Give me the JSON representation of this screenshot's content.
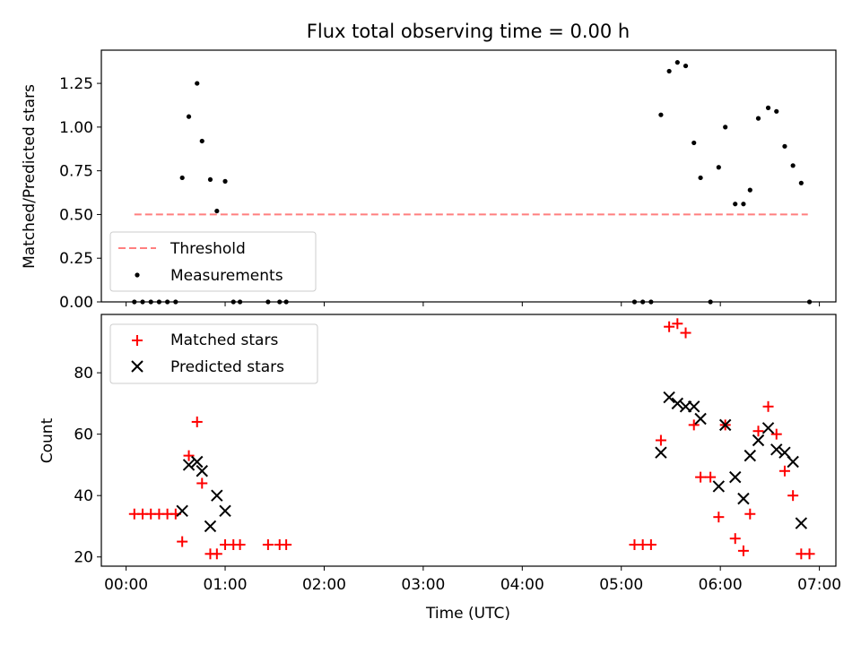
{
  "chart_data": [
    {
      "type": "scatter",
      "title": "Flux total observing time = 0.00 h",
      "xlabel": "",
      "ylabel": "Matched/Predicted stars",
      "xlim": [
        "23:45",
        "07:10"
      ],
      "ylim": [
        0,
        1.44
      ],
      "yticks": [
        "0.00",
        "0.25",
        "0.50",
        "0.75",
        "1.00",
        "1.25"
      ],
      "grid": false,
      "legend_position": "lower-left",
      "threshold": {
        "name": "Threshold",
        "color": "#ff7f7f",
        "style": "dashed",
        "y": 0.5,
        "x_start": "00:05",
        "x_end": "06:53"
      },
      "series": [
        {
          "name": "Measurements",
          "color": "#000000",
          "marker": "dot",
          "points": [
            {
              "x": "00:05",
              "y": 0.0
            },
            {
              "x": "00:10",
              "y": 0.0
            },
            {
              "x": "00:15",
              "y": 0.0
            },
            {
              "x": "00:20",
              "y": 0.0
            },
            {
              "x": "00:25",
              "y": 0.0
            },
            {
              "x": "00:30",
              "y": 0.0
            },
            {
              "x": "00:34",
              "y": 0.71
            },
            {
              "x": "00:38",
              "y": 1.06
            },
            {
              "x": "00:43",
              "y": 1.25
            },
            {
              "x": "00:46",
              "y": 0.92
            },
            {
              "x": "00:51",
              "y": 0.7
            },
            {
              "x": "00:55",
              "y": 0.52
            },
            {
              "x": "01:00",
              "y": 0.69
            },
            {
              "x": "01:05",
              "y": 0.0
            },
            {
              "x": "01:09",
              "y": 0.0
            },
            {
              "x": "01:26",
              "y": 0.0
            },
            {
              "x": "01:33",
              "y": 0.0
            },
            {
              "x": "01:37",
              "y": 0.0
            },
            {
              "x": "05:08",
              "y": 0.0
            },
            {
              "x": "05:13",
              "y": 0.0
            },
            {
              "x": "05:18",
              "y": 0.0
            },
            {
              "x": "05:24",
              "y": 1.07
            },
            {
              "x": "05:29",
              "y": 1.32
            },
            {
              "x": "05:34",
              "y": 1.37
            },
            {
              "x": "05:39",
              "y": 1.35
            },
            {
              "x": "05:44",
              "y": 0.91
            },
            {
              "x": "05:48",
              "y": 0.71
            },
            {
              "x": "05:54",
              "y": 0.0
            },
            {
              "x": "05:59",
              "y": 0.77
            },
            {
              "x": "06:03",
              "y": 1.0
            },
            {
              "x": "06:09",
              "y": 0.56
            },
            {
              "x": "06:14",
              "y": 0.56
            },
            {
              "x": "06:18",
              "y": 0.64
            },
            {
              "x": "06:23",
              "y": 1.05
            },
            {
              "x": "06:29",
              "y": 1.11
            },
            {
              "x": "06:34",
              "y": 1.09
            },
            {
              "x": "06:39",
              "y": 0.89
            },
            {
              "x": "06:44",
              "y": 0.78
            },
            {
              "x": "06:49",
              "y": 0.68
            },
            {
              "x": "06:54",
              "y": 0.0
            }
          ]
        }
      ]
    },
    {
      "type": "scatter",
      "title": "",
      "xlabel": "Time (UTC)",
      "ylabel": "Count",
      "xlim": [
        "23:45",
        "07:10"
      ],
      "ylim": [
        17,
        99
      ],
      "xticks": [
        "00:00",
        "01:00",
        "02:00",
        "03:00",
        "04:00",
        "05:00",
        "06:00",
        "07:00"
      ],
      "yticks": [
        "20",
        "40",
        "60",
        "80"
      ],
      "grid": false,
      "legend_position": "upper-left",
      "series": [
        {
          "name": "Matched stars",
          "color": "#ff0000",
          "marker": "plus",
          "points": [
            {
              "x": "00:05",
              "y": 34
            },
            {
              "x": "00:10",
              "y": 34
            },
            {
              "x": "00:15",
              "y": 34
            },
            {
              "x": "00:20",
              "y": 34
            },
            {
              "x": "00:25",
              "y": 34
            },
            {
              "x": "00:30",
              "y": 34
            },
            {
              "x": "00:34",
              "y": 25
            },
            {
              "x": "00:38",
              "y": 53
            },
            {
              "x": "00:43",
              "y": 64
            },
            {
              "x": "00:46",
              "y": 44
            },
            {
              "x": "00:51",
              "y": 21
            },
            {
              "x": "00:55",
              "y": 21
            },
            {
              "x": "01:00",
              "y": 24
            },
            {
              "x": "01:05",
              "y": 24
            },
            {
              "x": "01:09",
              "y": 24
            },
            {
              "x": "01:26",
              "y": 24
            },
            {
              "x": "01:33",
              "y": 24
            },
            {
              "x": "01:37",
              "y": 24
            },
            {
              "x": "05:08",
              "y": 24
            },
            {
              "x": "05:13",
              "y": 24
            },
            {
              "x": "05:18",
              "y": 24
            },
            {
              "x": "05:24",
              "y": 58
            },
            {
              "x": "05:29",
              "y": 95
            },
            {
              "x": "05:34",
              "y": 96
            },
            {
              "x": "05:39",
              "y": 93
            },
            {
              "x": "05:44",
              "y": 63
            },
            {
              "x": "05:48",
              "y": 46
            },
            {
              "x": "05:54",
              "y": 46
            },
            {
              "x": "05:59",
              "y": 33
            },
            {
              "x": "06:03",
              "y": 63
            },
            {
              "x": "06:09",
              "y": 26
            },
            {
              "x": "06:14",
              "y": 22
            },
            {
              "x": "06:18",
              "y": 34
            },
            {
              "x": "06:23",
              "y": 61
            },
            {
              "x": "06:29",
              "y": 69
            },
            {
              "x": "06:34",
              "y": 60
            },
            {
              "x": "06:39",
              "y": 48
            },
            {
              "x": "06:44",
              "y": 40
            },
            {
              "x": "06:49",
              "y": 21
            },
            {
              "x": "06:54",
              "y": 21
            }
          ]
        },
        {
          "name": "Predicted stars",
          "color": "#000000",
          "marker": "x",
          "points": [
            {
              "x": "00:34",
              "y": 35
            },
            {
              "x": "00:38",
              "y": 50
            },
            {
              "x": "00:43",
              "y": 51
            },
            {
              "x": "00:46",
              "y": 48
            },
            {
              "x": "00:51",
              "y": 30
            },
            {
              "x": "00:55",
              "y": 40
            },
            {
              "x": "01:00",
              "y": 35
            },
            {
              "x": "05:24",
              "y": 54
            },
            {
              "x": "05:29",
              "y": 72
            },
            {
              "x": "05:34",
              "y": 70
            },
            {
              "x": "05:39",
              "y": 69
            },
            {
              "x": "05:44",
              "y": 69
            },
            {
              "x": "05:48",
              "y": 65
            },
            {
              "x": "05:59",
              "y": 43
            },
            {
              "x": "06:03",
              "y": 63
            },
            {
              "x": "06:09",
              "y": 46
            },
            {
              "x": "06:14",
              "y": 39
            },
            {
              "x": "06:18",
              "y": 53
            },
            {
              "x": "06:23",
              "y": 58
            },
            {
              "x": "06:29",
              "y": 62
            },
            {
              "x": "06:34",
              "y": 55
            },
            {
              "x": "06:39",
              "y": 54
            },
            {
              "x": "06:44",
              "y": 51
            },
            {
              "x": "06:49",
              "y": 31
            }
          ]
        }
      ]
    }
  ]
}
